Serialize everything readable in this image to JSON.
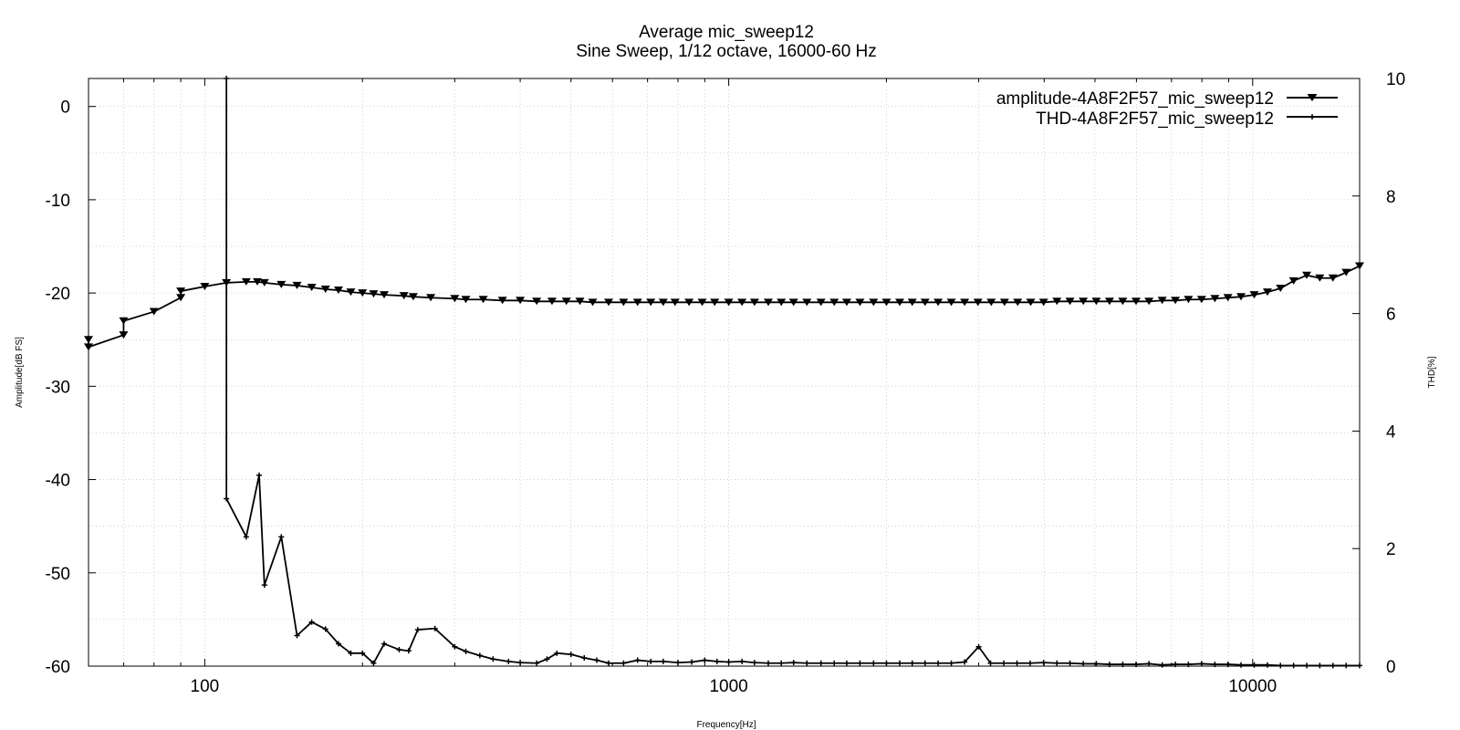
{
  "chart_data": {
    "type": "line",
    "title": "Average mic_sweep12",
    "subtitle": "Sine Sweep, 1/12 octave, 16000-60 Hz",
    "xlabel": "Frequency[Hz]",
    "ylabel": "Amplitude[dB FS]",
    "y2label": "THD[%]",
    "x_scale": "log",
    "xlim": [
      60,
      16000
    ],
    "ylim": [
      -60,
      3
    ],
    "y2lim": [
      0,
      10
    ],
    "x_ticks": [
      100,
      1000,
      10000
    ],
    "x_tick_labels": [
      "100",
      "1000",
      "10000"
    ],
    "y_ticks": [
      0,
      -10,
      -20,
      -30,
      -40,
      -50,
      -60
    ],
    "y_tick_labels": [
      "0",
      "-10",
      "-20",
      "-30",
      "-40",
      "-50",
      "-60"
    ],
    "y2_ticks": [
      10,
      8,
      6,
      4,
      2,
      0
    ],
    "y2_tick_labels": [
      "10",
      "8",
      "6",
      "4",
      "2",
      "0"
    ],
    "grid": true,
    "legend_position": "top-right",
    "series": [
      {
        "name": "amplitude-4A8F2F57_mic_sweep12",
        "axis": "left",
        "marker": "triangle-down",
        "x": [
          60,
          60,
          70,
          70,
          80,
          90,
          90,
          100,
          110,
          120,
          126,
          130,
          140,
          150,
          160,
          170,
          180,
          190,
          200,
          210,
          220,
          240,
          250,
          270,
          300,
          315,
          340,
          370,
          400,
          430,
          460,
          490,
          520,
          550,
          590,
          630,
          670,
          710,
          750,
          790,
          840,
          890,
          940,
          1000,
          1060,
          1120,
          1190,
          1260,
          1330,
          1410,
          1500,
          1590,
          1680,
          1780,
          1890,
          2000,
          2120,
          2240,
          2370,
          2510,
          2660,
          2820,
          2990,
          3170,
          3360,
          3560,
          3770,
          3990,
          4230,
          4480,
          4750,
          5030,
          5330,
          5650,
          5990,
          6340,
          6720,
          7120,
          7540,
          7990,
          8470,
          8970,
          9500,
          10070,
          10670,
          11300,
          11970,
          12680,
          13430,
          14230,
          15080,
          16000
        ],
        "values": [
          -25.0,
          -25.8,
          -24.5,
          -23.0,
          -22.0,
          -20.5,
          -19.8,
          -19.3,
          -18.9,
          -18.8,
          -18.8,
          -18.9,
          -19.1,
          -19.2,
          -19.4,
          -19.6,
          -19.7,
          -19.9,
          -20.0,
          -20.1,
          -20.2,
          -20.3,
          -20.4,
          -20.5,
          -20.6,
          -20.7,
          -20.7,
          -20.8,
          -20.8,
          -20.9,
          -20.9,
          -20.9,
          -20.9,
          -21.0,
          -21.0,
          -21.0,
          -21.0,
          -21.0,
          -21.0,
          -21.0,
          -21.0,
          -21.0,
          -21.0,
          -21.0,
          -21.0,
          -21.0,
          -21.0,
          -21.0,
          -21.0,
          -21.0,
          -21.0,
          -21.0,
          -21.0,
          -21.0,
          -21.0,
          -21.0,
          -21.0,
          -21.0,
          -21.0,
          -21.0,
          -21.0,
          -21.0,
          -21.0,
          -21.0,
          -21.0,
          -21.0,
          -21.0,
          -21.0,
          -20.9,
          -20.9,
          -20.9,
          -20.9,
          -20.9,
          -20.9,
          -20.9,
          -20.9,
          -20.8,
          -20.8,
          -20.7,
          -20.7,
          -20.6,
          -20.5,
          -20.4,
          -20.2,
          -19.9,
          -19.5,
          -18.7,
          -18.1,
          -18.4,
          -18.4,
          -17.8,
          -17.1
        ]
      },
      {
        "name": "THD-4A8F2F57_mic_sweep12",
        "axis": "right",
        "marker": "plus",
        "x": [
          110,
          110,
          120,
          127,
          130,
          140,
          150,
          160,
          170,
          180,
          190,
          200,
          210,
          220,
          235,
          245,
          255,
          275,
          300,
          315,
          335,
          355,
          380,
          400,
          430,
          450,
          470,
          500,
          530,
          560,
          590,
          630,
          670,
          710,
          750,
          800,
          850,
          900,
          950,
          1000,
          1060,
          1120,
          1190,
          1260,
          1330,
          1410,
          1500,
          1590,
          1680,
          1780,
          1890,
          2000,
          2120,
          2240,
          2370,
          2510,
          2660,
          2820,
          3000,
          3160,
          3350,
          3550,
          3760,
          3990,
          4230,
          4480,
          4750,
          5030,
          5330,
          5650,
          5990,
          6340,
          6720,
          7120,
          7540,
          7990,
          8470,
          8970,
          9500,
          10070,
          10670,
          11300,
          11970,
          12680,
          13430,
          14230,
          15080,
          16000
        ],
        "values": [
          10.0,
          2.85,
          2.2,
          3.25,
          1.38,
          2.2,
          0.52,
          0.75,
          0.63,
          0.38,
          0.22,
          0.22,
          0.05,
          0.38,
          0.28,
          0.26,
          0.62,
          0.64,
          0.33,
          0.25,
          0.18,
          0.12,
          0.08,
          0.06,
          0.05,
          0.12,
          0.22,
          0.2,
          0.14,
          0.1,
          0.05,
          0.05,
          0.1,
          0.08,
          0.08,
          0.06,
          0.07,
          0.1,
          0.08,
          0.07,
          0.08,
          0.06,
          0.05,
          0.05,
          0.06,
          0.05,
          0.05,
          0.05,
          0.05,
          0.05,
          0.05,
          0.05,
          0.05,
          0.05,
          0.05,
          0.05,
          0.05,
          0.07,
          0.33,
          0.05,
          0.05,
          0.05,
          0.05,
          0.06,
          0.05,
          0.05,
          0.04,
          0.04,
          0.03,
          0.03,
          0.03,
          0.04,
          0.02,
          0.03,
          0.03,
          0.04,
          0.03,
          0.03,
          0.02,
          0.02,
          0.02,
          0.01,
          0.01,
          0.01,
          0.01,
          0.01,
          0.01,
          0.01
        ]
      }
    ]
  }
}
